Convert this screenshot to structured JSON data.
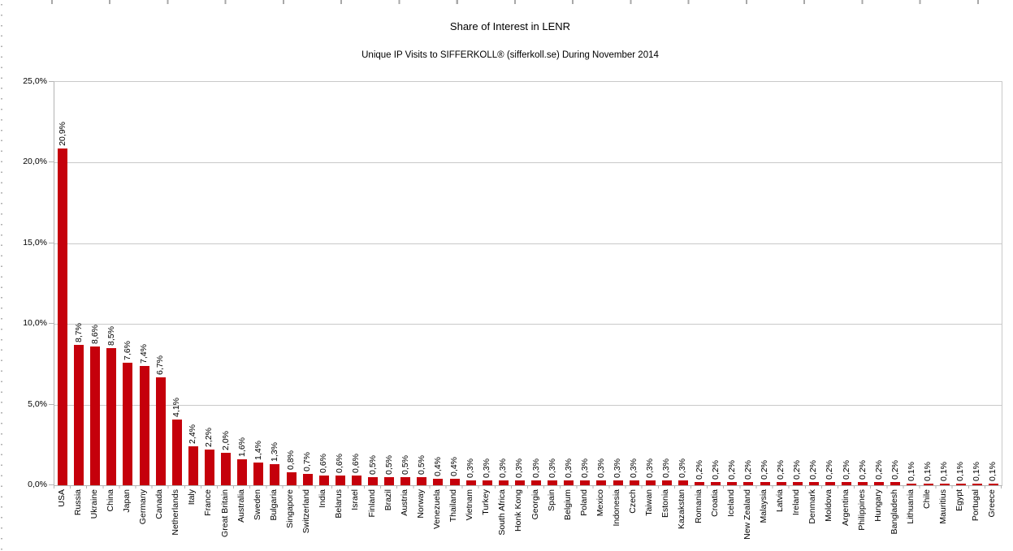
{
  "page": {
    "background": "#ffffff",
    "ruler_tick_color": "#a8a8a8"
  },
  "chart_data": {
    "type": "bar",
    "title": "Share of Interest in LENR",
    "subtitle": "Unique IP Visits to SIFFERKOLL® (sifferkoll.se) During November 2014",
    "xlabel": "",
    "ylabel": "",
    "ylim": [
      0,
      25
    ],
    "grid": true,
    "gridline_color": "#c9c9c9",
    "legend_position": "none",
    "bar_color": "#c5000b",
    "y_axis_ticks": [
      {
        "label": "25,0%",
        "value": 25
      },
      {
        "label": "20,0%",
        "value": 20
      },
      {
        "label": "15,0%",
        "value": 15
      },
      {
        "label": "10,0%",
        "value": 10
      },
      {
        "label": "5,0%",
        "value": 5
      },
      {
        "label": "0,0%",
        "value": 0
      }
    ],
    "categories": [
      "USA",
      "Russia",
      "Ukraine",
      "China",
      "Japan",
      "Germany",
      "Canada",
      "Netherlands",
      "Italy",
      "France",
      "Great Britain",
      "Australia",
      "Sweden",
      "Bulgaria",
      "Singapore",
      "Switzerland",
      "India",
      "Belarus",
      "Israel",
      "Finland",
      "Brazil",
      "Austria",
      "Norway",
      "Venezuela",
      "Thailand",
      "Vietnam",
      "Turkey",
      "South Africa",
      "Honk Kong",
      "Georgia",
      "Spain",
      "Belgium",
      "Poland",
      "Mexico",
      "Indonesia",
      "Czech",
      "Taiwan",
      "Estonia",
      "Kazakstan",
      "Romania",
      "Croatia",
      "Iceland",
      "New Zealand",
      "Malaysia",
      "Latvia",
      "Ireland",
      "Denmark",
      "Moldova",
      "Argentina",
      "Philippines",
      "Hungary",
      "Bangladesh",
      "Lithuania",
      "Chile",
      "Mauritius",
      "Egypt",
      "Portugal",
      "Greece"
    ],
    "values": [
      20.9,
      8.7,
      8.6,
      8.5,
      7.6,
      7.4,
      6.7,
      4.1,
      2.4,
      2.2,
      2.0,
      1.6,
      1.4,
      1.3,
      0.8,
      0.7,
      0.6,
      0.6,
      0.6,
      0.5,
      0.5,
      0.5,
      0.5,
      0.4,
      0.4,
      0.3,
      0.3,
      0.3,
      0.3,
      0.3,
      0.3,
      0.3,
      0.3,
      0.3,
      0.3,
      0.3,
      0.3,
      0.3,
      0.3,
      0.2,
      0.2,
      0.2,
      0.2,
      0.2,
      0.2,
      0.2,
      0.2,
      0.2,
      0.2,
      0.2,
      0.2,
      0.2,
      0.1,
      0.1,
      0.1,
      0.1,
      0.1,
      0.1
    ],
    "value_labels": [
      "20,9%",
      "8,7%",
      "8,6%",
      "8,5%",
      "7,6%",
      "7,4%",
      "6,7%",
      "4,1%",
      "2,4%",
      "2,2%",
      "2,0%",
      "1,6%",
      "1,4%",
      "1,3%",
      "0,8%",
      "0,7%",
      "0,6%",
      "0,6%",
      "0,6%",
      "0,5%",
      "0,5%",
      "0,5%",
      "0,5%",
      "0,4%",
      "0,4%",
      "0,3%",
      "0,3%",
      "0,3%",
      "0,3%",
      "0,3%",
      "0,3%",
      "0,3%",
      "0,3%",
      "0,3%",
      "0,3%",
      "0,3%",
      "0,3%",
      "0,3%",
      "0,3%",
      "0,2%",
      "0,2%",
      "0,2%",
      "0,2%",
      "0,2%",
      "0,2%",
      "0,2%",
      "0,2%",
      "0,2%",
      "0,2%",
      "0,2%",
      "0,2%",
      "0,2%",
      "0,1%",
      "0,1%",
      "0,1%",
      "0,1%",
      "0,1%",
      "0,1%"
    ]
  }
}
